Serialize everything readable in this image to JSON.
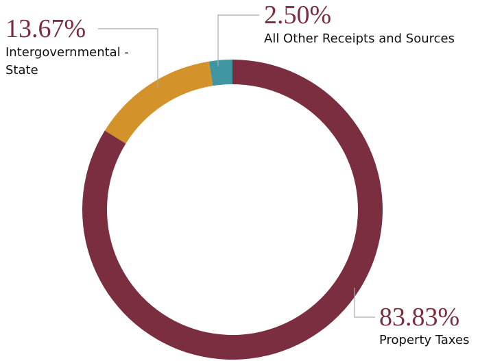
{
  "chart_data": {
    "type": "donut",
    "categories": [
      "Property Taxes",
      "Intergovernmental - State",
      "All Other Receipts and Sources"
    ],
    "values": [
      83.83,
      13.67,
      2.5
    ],
    "value_labels": [
      "83.83%",
      "13.67%",
      "2.50%"
    ],
    "colors": [
      "#7a2e3f",
      "#d4922a",
      "#3f96a0"
    ]
  }
}
